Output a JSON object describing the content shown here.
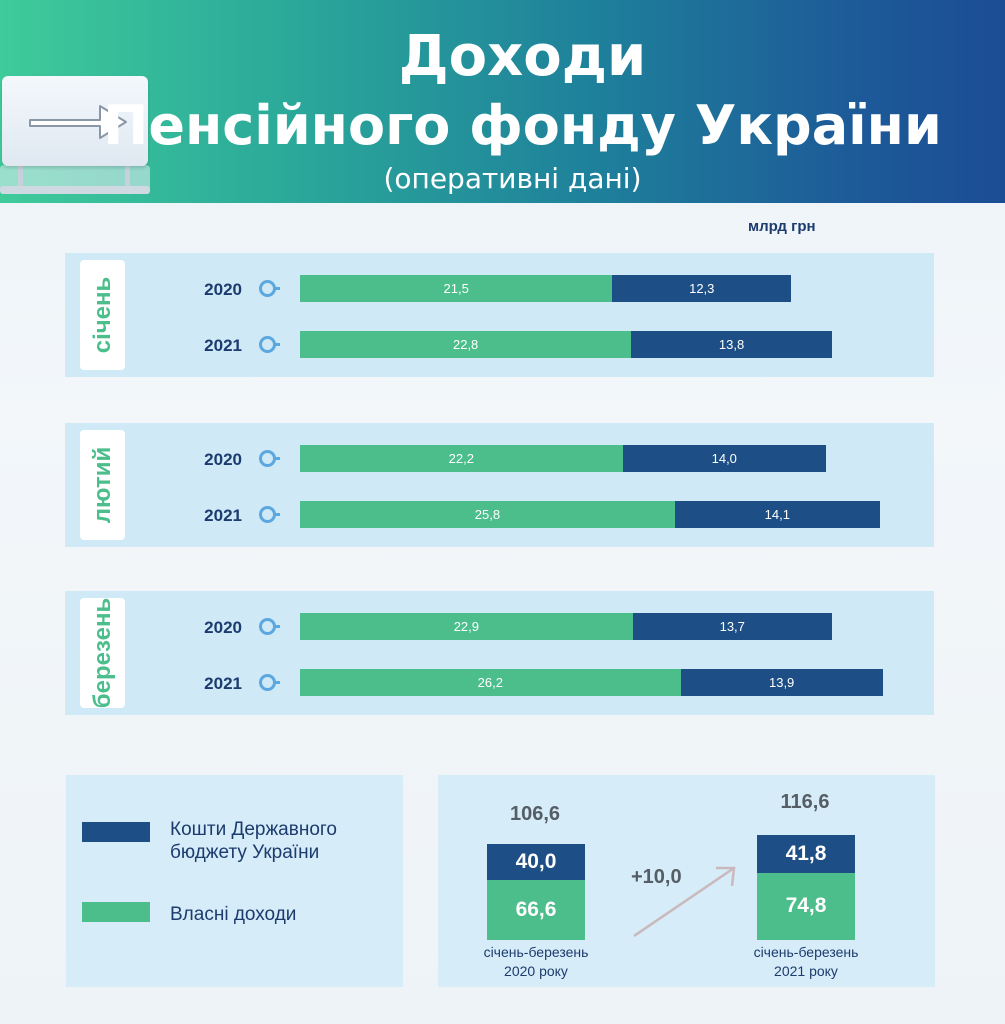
{
  "header": {
    "title_line1": "Доходи",
    "title_line2": "Пенсійного фонду України",
    "subtitle": "(оперативні дані)"
  },
  "unit": "млрд грн",
  "colors": {
    "own": "#4cbe8b",
    "state": "#1d4f86",
    "panel": "#cfe9f7"
  },
  "chart_data": [
    {
      "type": "bar",
      "orientation": "horizontal",
      "stacked": true,
      "groups": [
        "січень",
        "лютий",
        "березень"
      ],
      "categories": [
        "2020",
        "2021"
      ],
      "series": [
        {
          "name": "Власні доходи",
          "values": {
            "січень": [
              21.5,
              22.8
            ],
            "лютий": [
              22.2,
              25.8
            ],
            "березень": [
              22.9,
              26.2
            ]
          }
        },
        {
          "name": "Кошти Державного бюджету України",
          "values": {
            "січень": [
              12.3,
              13.8
            ],
            "лютий": [
              14.0,
              14.1
            ],
            "березень": [
              13.7,
              13.9
            ]
          }
        }
      ],
      "value_labels": {
        "січень": [
          [
            "21,5",
            "12,3"
          ],
          [
            "22,8",
            "13,8"
          ]
        ],
        "лютий": [
          [
            "22,2",
            "14,0"
          ],
          [
            "25,8",
            "14,1"
          ]
        ],
        "березень": [
          [
            "22,9",
            "13,7"
          ],
          [
            "26,2",
            "13,9"
          ]
        ]
      },
      "unit": "млрд грн"
    },
    {
      "type": "bar",
      "stacked": true,
      "categories": [
        "січень-березень 2020 року",
        "січень-березень 2021 року"
      ],
      "series": [
        {
          "name": "Власні доходи",
          "values": [
            66.6,
            74.8
          ],
          "labels": [
            "66,6",
            "74,8"
          ]
        },
        {
          "name": "Кошти Державного бюджету України",
          "values": [
            40.0,
            41.8
          ],
          "labels": [
            "40,0",
            "41,8"
          ]
        }
      ],
      "totals": [
        "106,6",
        "116,6"
      ],
      "difference": "+10,0"
    }
  ],
  "legend": {
    "state_label": "Кошти Державного бюджету України",
    "own_label": "Власні доходи"
  },
  "summary": {
    "p1_line1": "січень-березень",
    "p1_line2": "2020 року",
    "p2_line1": "січень-березень",
    "p2_line2": "2021 року"
  }
}
